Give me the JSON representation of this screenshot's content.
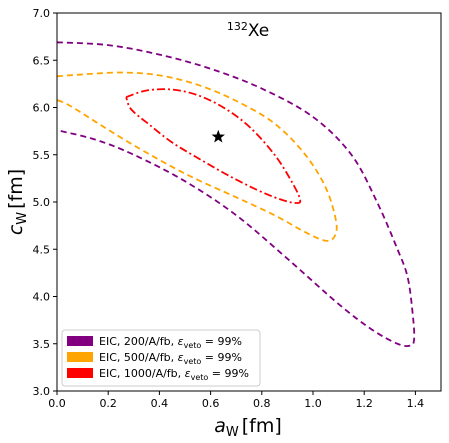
{
  "chart_data": {
    "type": "contour",
    "title": "",
    "annotation": {
      "mass_number": "132",
      "element": "Xe"
    },
    "xlabel": {
      "symbol": "a",
      "subscript": "W",
      "unit": "[fm]"
    },
    "ylabel": {
      "symbol": "c",
      "subscript": "W",
      "unit": "[fm]"
    },
    "xlim": [
      0.0,
      1.5
    ],
    "ylim": [
      3.0,
      7.0
    ],
    "xticks": [
      "0.0",
      "0.2",
      "0.4",
      "0.6",
      "0.8",
      "1.0",
      "1.2",
      "1.4"
    ],
    "yticks": [
      "3.0",
      "3.5",
      "4.0",
      "4.5",
      "5.0",
      "5.5",
      "6.0",
      "6.5",
      "7.0"
    ],
    "grid": false,
    "legend_position": "bottom-left",
    "best_fit": {
      "x": 0.63,
      "y": 5.69,
      "marker": "star"
    },
    "series": [
      {
        "legend": "EIC, 200/A/fb, ε_veto = 99%",
        "legend_parts": [
          "EIC, 200/A/fb, ",
          "ε",
          "veto",
          " = 99%"
        ],
        "color": "#800080",
        "dash": "dashed",
        "points": [
          [
            0.0,
            6.69
          ],
          [
            0.2,
            6.66
          ],
          [
            0.4,
            6.56
          ],
          [
            0.6,
            6.41
          ],
          [
            0.8,
            6.2
          ],
          [
            1.0,
            5.9
          ],
          [
            1.15,
            5.5
          ],
          [
            1.25,
            5.0
          ],
          [
            1.33,
            4.5
          ],
          [
            1.37,
            4.2
          ],
          [
            1.39,
            3.8
          ],
          [
            1.395,
            3.55
          ],
          [
            1.38,
            3.48
          ],
          [
            1.33,
            3.5
          ],
          [
            1.23,
            3.65
          ],
          [
            1.1,
            3.92
          ],
          [
            0.9,
            4.4
          ],
          [
            0.7,
            4.86
          ],
          [
            0.5,
            5.22
          ],
          [
            0.3,
            5.5
          ],
          [
            0.15,
            5.66
          ],
          [
            0.0,
            5.76
          ]
        ]
      },
      {
        "legend": "EIC, 500/A/fb, ε_veto = 99%",
        "legend_parts": [
          "EIC, 500/A/fb, ",
          "ε",
          "veto",
          " = 99%"
        ],
        "color": "#FFA500",
        "dash": "dashed",
        "points": [
          [
            0.0,
            6.33
          ],
          [
            0.1,
            6.35
          ],
          [
            0.25,
            6.37
          ],
          [
            0.4,
            6.34
          ],
          [
            0.55,
            6.24
          ],
          [
            0.7,
            6.07
          ],
          [
            0.85,
            5.83
          ],
          [
            0.97,
            5.5
          ],
          [
            1.05,
            5.15
          ],
          [
            1.09,
            4.8
          ],
          [
            1.085,
            4.64
          ],
          [
            1.05,
            4.59
          ],
          [
            0.97,
            4.68
          ],
          [
            0.85,
            4.86
          ],
          [
            0.7,
            5.05
          ],
          [
            0.5,
            5.3
          ],
          [
            0.3,
            5.6
          ],
          [
            0.15,
            5.85
          ],
          [
            0.05,
            6.02
          ],
          [
            0.0,
            6.08
          ]
        ]
      },
      {
        "legend": "EIC, 1000/A/fb, ε_veto = 99%",
        "legend_parts": [
          "EIC, 1000/A/fb, ",
          "ε",
          "veto",
          " = 99%"
        ],
        "color": "#FF0000",
        "dash": "dashdot",
        "points": [
          [
            0.27,
            6.11
          ],
          [
            0.35,
            6.18
          ],
          [
            0.45,
            6.19
          ],
          [
            0.55,
            6.13
          ],
          [
            0.65,
            6.0
          ],
          [
            0.75,
            5.8
          ],
          [
            0.85,
            5.5
          ],
          [
            0.92,
            5.2
          ],
          [
            0.95,
            5.02
          ],
          [
            0.93,
            4.99
          ],
          [
            0.87,
            5.03
          ],
          [
            0.78,
            5.13
          ],
          [
            0.67,
            5.28
          ],
          [
            0.56,
            5.45
          ],
          [
            0.45,
            5.63
          ],
          [
            0.36,
            5.82
          ],
          [
            0.29,
            5.98
          ],
          [
            0.27,
            6.11
          ]
        ]
      }
    ]
  }
}
